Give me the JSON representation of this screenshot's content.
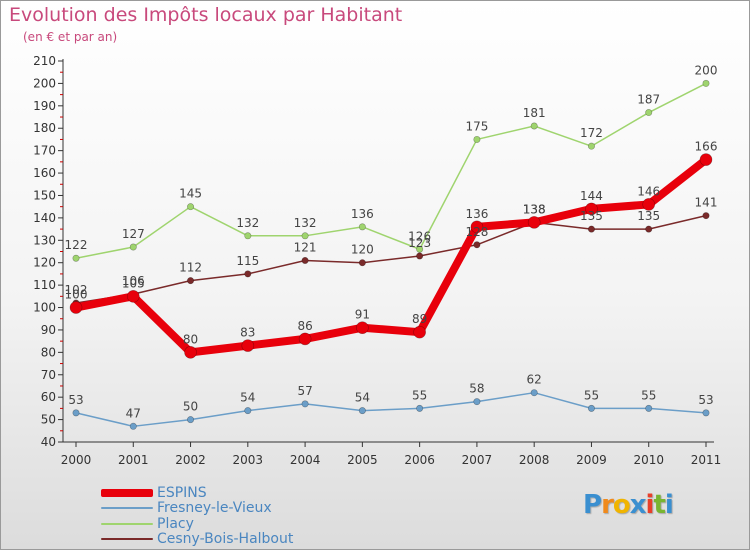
{
  "title": "Evolution des Impôts locaux par Habitant",
  "subtitle": "(en € et par an)",
  "logo": {
    "text": "Proxiti",
    "letters": [
      "P",
      "r",
      "o",
      "x",
      "i",
      "t",
      "i"
    ],
    "colors": [
      "#3a8fd0",
      "#f08a1c",
      "#f0b400",
      "#3a8fd0",
      "#e8402a",
      "#79b531",
      "#3a8fd0"
    ]
  },
  "chart_data": {
    "type": "line",
    "x": [
      "2000",
      "2001",
      "2002",
      "2003",
      "2004",
      "2005",
      "2006",
      "2007",
      "2008",
      "2009",
      "2010",
      "2011"
    ],
    "ylim": [
      40,
      210
    ],
    "yticks": [
      40,
      50,
      60,
      70,
      80,
      90,
      100,
      110,
      120,
      130,
      140,
      150,
      160,
      170,
      180,
      190,
      200,
      210
    ],
    "grid": false,
    "legend_position": "bottom-left",
    "series": [
      {
        "name": "ESPINS",
        "color": "#e8000b",
        "values": [
          100,
          105,
          80,
          83,
          86,
          91,
          89,
          136,
          138,
          144,
          146,
          166
        ]
      },
      {
        "name": "Fresney-le-Vieux",
        "color": "#6b9ec8",
        "values": [
          53,
          47,
          50,
          54,
          57,
          54,
          55,
          58,
          62,
          55,
          55,
          53
        ]
      },
      {
        "name": "Placy",
        "color": "#9fd46e",
        "values": [
          122,
          127,
          145,
          132,
          132,
          136,
          126,
          175,
          181,
          172,
          187,
          200
        ]
      },
      {
        "name": "Cesny-Bois-Halbout",
        "color": "#7a2a2a",
        "values": [
          102,
          106,
          112,
          115,
          121,
          120,
          123,
          128,
          138,
          135,
          135,
          141
        ]
      }
    ],
    "point_labels": [
      [
        "100",
        "105",
        "80",
        "83",
        "86",
        "91",
        "89",
        "136",
        "138",
        "144",
        "146",
        "166"
      ],
      [
        "53",
        "47",
        "50",
        "54",
        "57",
        "54",
        "55",
        "58",
        "62",
        "55",
        "55",
        "53"
      ],
      [
        "122",
        "127",
        "145",
        "132",
        "132",
        "136",
        "126",
        "175",
        "181",
        "172",
        "187",
        "200"
      ],
      [
        "102",
        "106",
        "112",
        "115",
        "121",
        "120",
        "123",
        "128",
        "138",
        "135",
        "135",
        "141"
      ]
    ]
  }
}
